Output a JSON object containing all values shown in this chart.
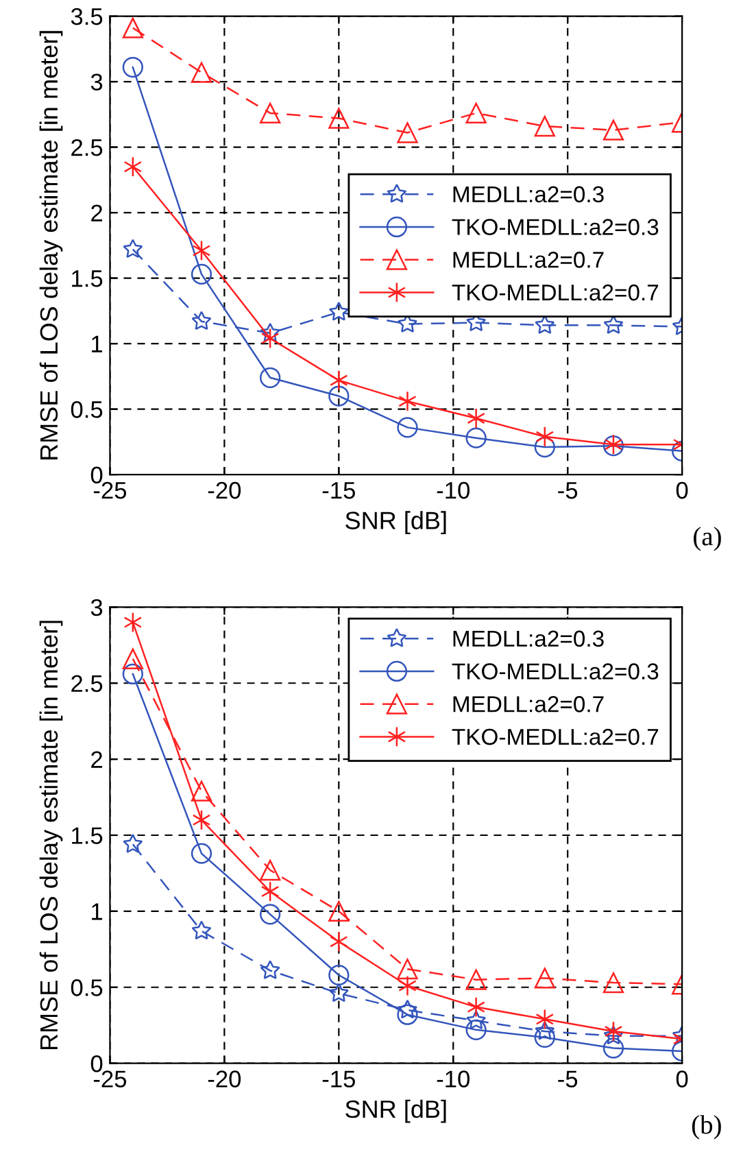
{
  "chart_data": [
    {
      "type": "line",
      "xlabel": "SNR [dB]",
      "ylabel": "RMSE of LOS delay estimate [in meter]",
      "annotations": [
        "(a)"
      ],
      "x": [
        -24,
        -21,
        -18,
        -15,
        -12,
        -9,
        -6,
        -3,
        0
      ],
      "xlim": [
        -25,
        0
      ],
      "xticks": [
        -25,
        -20,
        -15,
        -10,
        -5,
        0
      ],
      "ylim": [
        0,
        3.5
      ],
      "yticks": [
        0,
        0.5,
        1,
        1.5,
        2,
        2.5,
        3,
        3.5
      ],
      "grid": true,
      "legend": "right",
      "series": [
        {
          "name": "MEDLL:a2=0.3",
          "color": "#3355bb",
          "marker": "star",
          "line_style": "dashed",
          "values": [
            1.72,
            1.17,
            1.08,
            1.24,
            1.15,
            1.16,
            1.14,
            1.14,
            1.13
          ]
        },
        {
          "name": "TKO-MEDLL:a2=0.3",
          "color": "#3355bb",
          "marker": "circle",
          "line_style": "solid",
          "values": [
            3.11,
            1.53,
            0.74,
            0.6,
            0.36,
            0.28,
            0.21,
            0.22,
            0.18
          ]
        },
        {
          "name": "MEDLL:a2=0.7",
          "color": "#ff2020",
          "marker": "triangle",
          "line_style": "dashed",
          "values": [
            3.41,
            3.07,
            2.76,
            2.72,
            2.61,
            2.76,
            2.66,
            2.63,
            2.69
          ]
        },
        {
          "name": "TKO-MEDLL:a2=0.7",
          "color": "#ff2020",
          "marker": "cross",
          "line_style": "solid",
          "values": [
            2.35,
            1.71,
            1.04,
            0.72,
            0.56,
            0.43,
            0.29,
            0.23,
            0.23
          ]
        }
      ]
    },
    {
      "type": "line",
      "xlabel": "SNR [dB]",
      "ylabel": "RMSE of LOS delay estimate [in meter]",
      "annotations": [
        "(b)"
      ],
      "x": [
        -24,
        -21,
        -18,
        -15,
        -12,
        -9,
        -6,
        -3,
        0
      ],
      "xlim": [
        -25,
        0
      ],
      "xticks": [
        -25,
        -20,
        -15,
        -10,
        -5,
        0
      ],
      "ylim": [
        0,
        3
      ],
      "yticks": [
        0,
        0.5,
        1,
        1.5,
        2,
        2.5,
        3
      ],
      "grid": true,
      "legend": "top right",
      "series": [
        {
          "name": "MEDLL:a2=0.3",
          "color": "#3355bb",
          "marker": "star",
          "line_style": "dashed",
          "values": [
            1.44,
            0.87,
            0.61,
            0.46,
            0.35,
            0.28,
            0.21,
            0.18,
            0.18
          ]
        },
        {
          "name": "TKO-MEDLL:a2=0.3",
          "color": "#3355bb",
          "marker": "circle",
          "line_style": "solid",
          "values": [
            2.56,
            1.38,
            0.98,
            0.58,
            0.32,
            0.22,
            0.17,
            0.1,
            0.08
          ]
        },
        {
          "name": "MEDLL:a2=0.7",
          "color": "#ff2020",
          "marker": "triangle",
          "line_style": "dashed",
          "values": [
            2.66,
            1.79,
            1.27,
            1.0,
            0.62,
            0.55,
            0.56,
            0.53,
            0.52
          ]
        },
        {
          "name": "TKO-MEDLL:a2=0.7",
          "color": "#ff2020",
          "marker": "cross",
          "line_style": "solid",
          "values": [
            2.9,
            1.6,
            1.13,
            0.8,
            0.51,
            0.37,
            0.29,
            0.21,
            0.16
          ]
        }
      ]
    }
  ]
}
